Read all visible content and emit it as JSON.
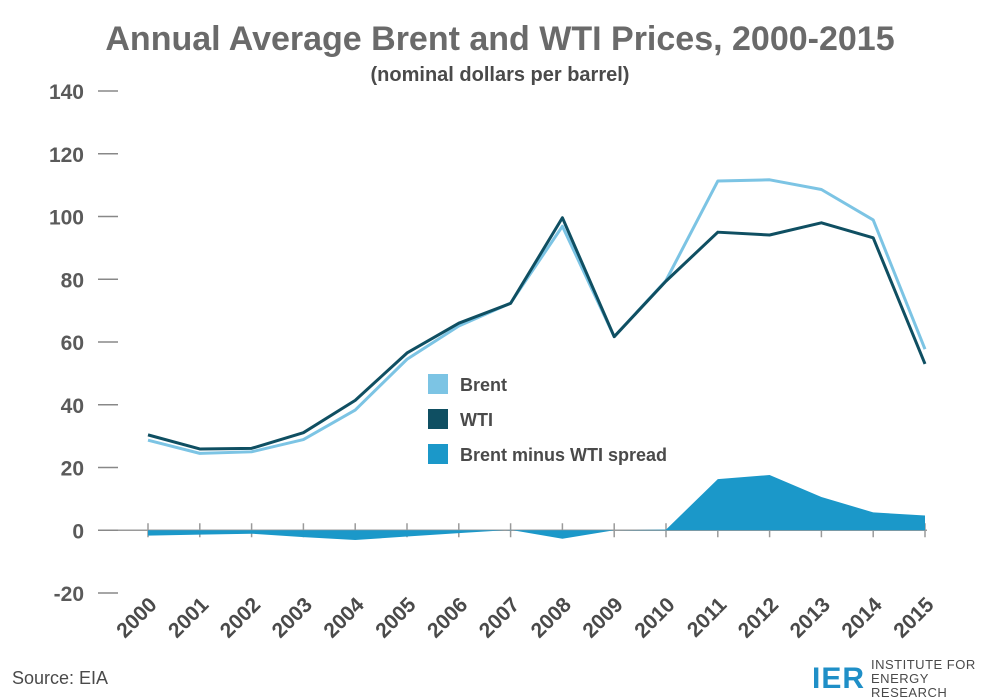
{
  "title": "Annual Average Brent and WTI Prices, 2000-2015",
  "subtitle": "(nominal dollars per barrel)",
  "source": "Source: EIA",
  "brand": {
    "logo": "IER",
    "name_line1": "INSTITUTE FOR",
    "name_line2": "ENERGY RESEARCH"
  },
  "chart_data": {
    "type": "line",
    "x": [
      "2000",
      "2001",
      "2002",
      "2003",
      "2004",
      "2005",
      "2006",
      "2007",
      "2008",
      "2009",
      "2010",
      "2011",
      "2012",
      "2013",
      "2014",
      "2015"
    ],
    "ylim": [
      -20,
      140
    ],
    "yticks": [
      -20,
      0,
      20,
      40,
      60,
      80,
      100,
      120,
      140
    ],
    "grid": false,
    "legend_position": "center",
    "series": [
      {
        "name": "Brent",
        "kind": "line",
        "color": "#7cc4e4",
        "values": [
          28.7,
          24.5,
          25.0,
          28.9,
          38.3,
          54.5,
          65.1,
          72.4,
          96.9,
          61.7,
          79.6,
          111.3,
          111.7,
          108.6,
          98.9,
          57.7
        ]
      },
      {
        "name": "WTI",
        "kind": "line",
        "color": "#0f4f62",
        "values": [
          30.4,
          25.9,
          26.1,
          31.1,
          41.4,
          56.5,
          66.0,
          72.3,
          99.6,
          61.7,
          79.4,
          95.0,
          94.1,
          98.0,
          93.2,
          53.0
        ]
      },
      {
        "name": "Brent minus WTI spread",
        "kind": "area",
        "color": "#1b98c9",
        "values": [
          -1.7,
          -1.4,
          -1.1,
          -2.2,
          -3.1,
          -2.0,
          -0.9,
          0.1,
          -2.7,
          0.0,
          0.2,
          16.3,
          17.6,
          10.6,
          5.7,
          4.7
        ]
      }
    ]
  }
}
